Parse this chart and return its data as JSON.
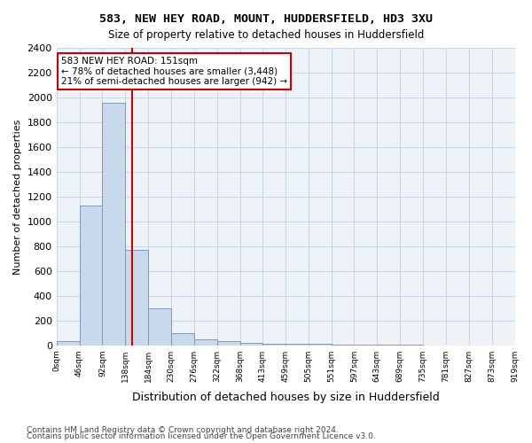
{
  "title1": "583, NEW HEY ROAD, MOUNT, HUDDERSFIELD, HD3 3XU",
  "title2": "Size of property relative to detached houses in Huddersfield",
  "xlabel": "Distribution of detached houses by size in Huddersfield",
  "ylabel": "Number of detached properties",
  "footnote1": "Contains HM Land Registry data © Crown copyright and database right 2024.",
  "footnote2": "Contains public sector information licensed under the Open Government Licence v3.0.",
  "annotation_line1": "583 NEW HEY ROAD: 151sqm",
  "annotation_line2": "← 78% of detached houses are smaller (3,448)",
  "annotation_line3": "21% of semi-detached houses are larger (942) →",
  "bar_color": "#c9d9ec",
  "bar_edge_color": "#7a9abf",
  "grid_color": "#c8d8e8",
  "background_color": "#eef3f8",
  "vline_x": 151,
  "vline_color": "#cc0000",
  "bin_edges": [
    0,
    46,
    92,
    138,
    184,
    230,
    276,
    322,
    368,
    413,
    459,
    505,
    551,
    597,
    643,
    689,
    735,
    781,
    827,
    873,
    919
  ],
  "bar_heights": [
    30,
    1130,
    1960,
    770,
    300,
    100,
    50,
    30,
    20,
    10,
    10,
    15,
    5,
    3,
    2,
    2,
    1,
    1,
    1,
    1
  ],
  "ylim": [
    0,
    2400
  ],
  "yticks": [
    0,
    200,
    400,
    600,
    800,
    1000,
    1200,
    1400,
    1600,
    1800,
    2000,
    2200,
    2400
  ],
  "xtick_labels": [
    "0sqm",
    "46sqm",
    "92sqm",
    "138sqm",
    "184sqm",
    "230sqm",
    "276sqm",
    "322sqm",
    "368sqm",
    "413sqm",
    "459sqm",
    "505sqm",
    "551sqm",
    "597sqm",
    "643sqm",
    "689sqm",
    "735sqm",
    "781sqm",
    "827sqm",
    "873sqm",
    "919sqm"
  ]
}
